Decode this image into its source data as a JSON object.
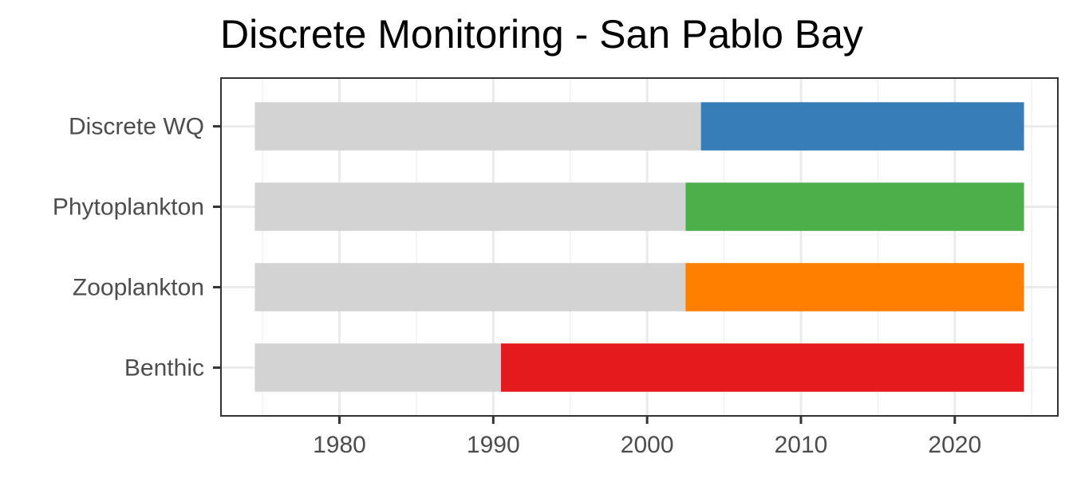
{
  "chart_data": {
    "type": "bar",
    "orientation": "horizontal",
    "stacked": true,
    "title": "Discrete Monitoring - San Pablo Bay",
    "xlabel": "",
    "ylabel": "",
    "categories": [
      "Discrete WQ",
      "Phytoplankton",
      "Zooplankton",
      "Benthic"
    ],
    "range_start": 1974.5,
    "range_end": 2024.5,
    "split_year": [
      2003.5,
      2002.5,
      2002.5,
      1990.5
    ],
    "base_color": "#d3d3d3",
    "colors": [
      "#377eb8",
      "#4daf4a",
      "#ff7f00",
      "#e41a1c"
    ],
    "xlim": [
      1972.3,
      2026.7
    ],
    "xticks": [
      1980,
      1990,
      2000,
      2010,
      2020
    ],
    "grid": true,
    "legend": "none"
  }
}
